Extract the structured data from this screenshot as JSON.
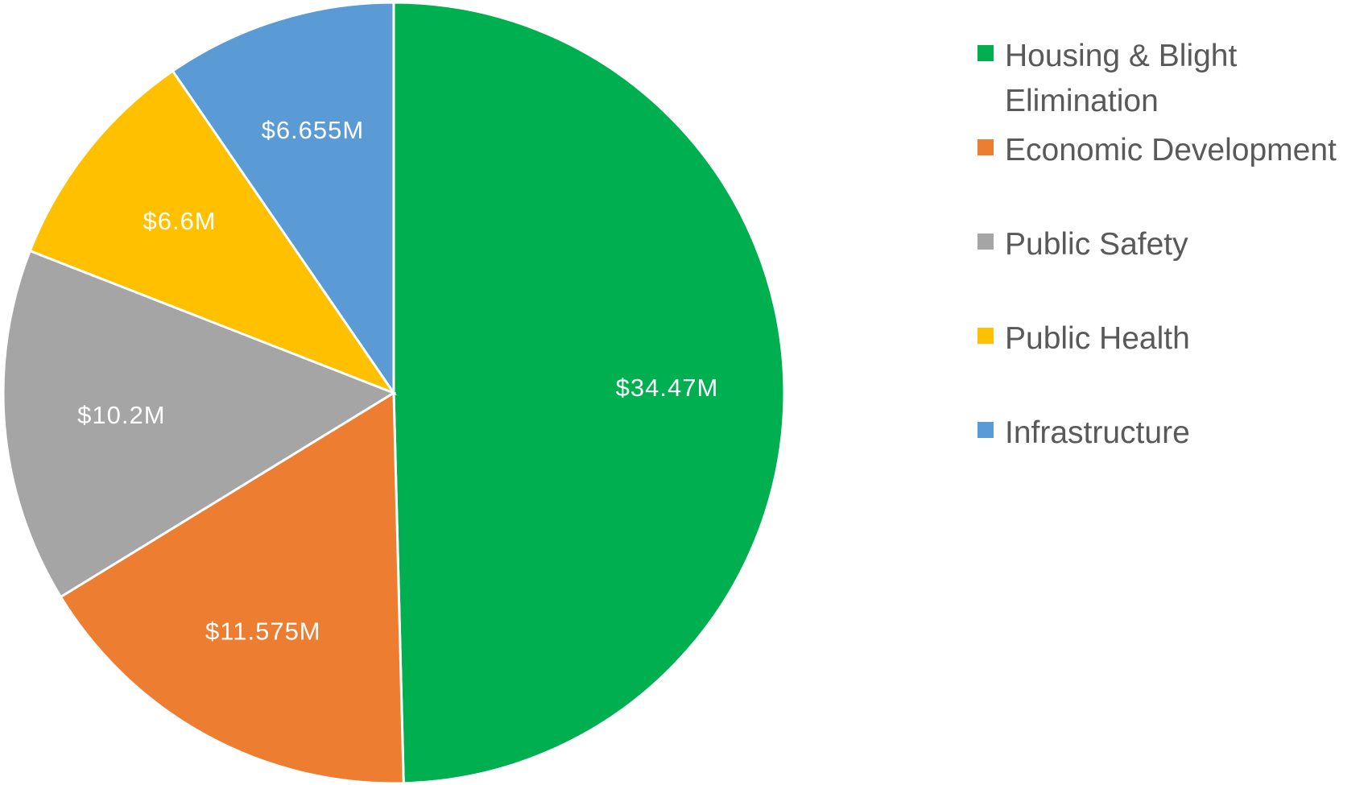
{
  "chart_data": {
    "type": "pie",
    "categories": [
      "Housing & Blight Elimination",
      "Economic Development",
      "Public Safety",
      "Public Health",
      "Infrastructure"
    ],
    "values": [
      34.47,
      11.575,
      10.2,
      6.6,
      6.655
    ],
    "value_labels": [
      "$34.47M",
      "$11.575M",
      "$10.2M",
      "$6.6M",
      "$6.655M"
    ],
    "colors": [
      "#00b050",
      "#ed7d31",
      "#a5a5a5",
      "#ffc000",
      "#5b9bd5"
    ],
    "legend": "right"
  }
}
